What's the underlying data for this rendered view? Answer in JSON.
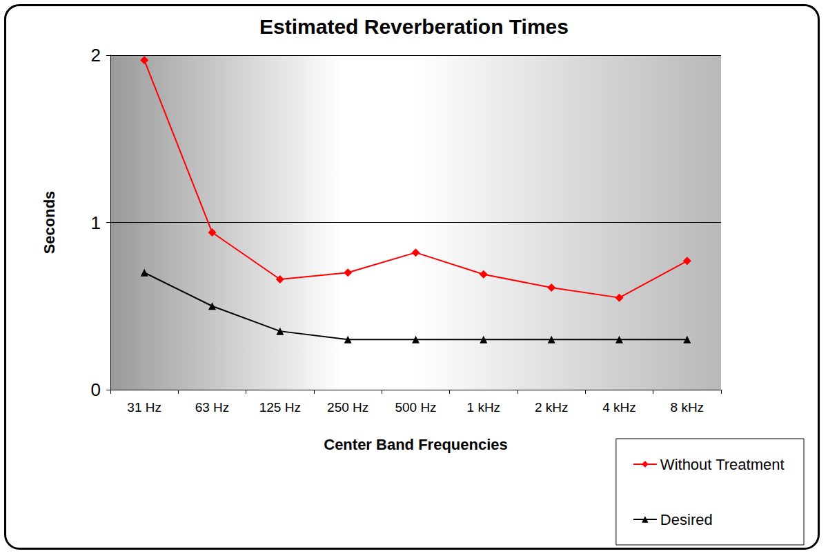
{
  "chart_data": {
    "type": "line",
    "title": "Estimated Reverberation Times",
    "xlabel": "Center Band Frequencies",
    "ylabel": "Seconds",
    "categories": [
      "31 Hz",
      "63 Hz",
      "125 Hz",
      "250 Hz",
      "500 Hz",
      "1 kHz",
      "2 kHz",
      "4 kHz",
      "8 kHz"
    ],
    "series": [
      {
        "name": "Without Treatment",
        "color": "#ff0000",
        "marker": "diamond",
        "line_style": "solid",
        "values": [
          1.97,
          0.94,
          0.66,
          0.7,
          0.82,
          0.69,
          0.61,
          0.55,
          0.77
        ]
      },
      {
        "name": "Desired",
        "color": "#000000",
        "marker": "triangle",
        "line_style": "solid",
        "values": [
          0.7,
          0.5,
          0.35,
          0.3,
          0.3,
          0.3,
          0.3,
          0.3,
          0.3
        ]
      }
    ],
    "ylim": [
      0,
      2
    ],
    "yticks": [
      0,
      1,
      2
    ],
    "grid": true,
    "legend": "lower right"
  }
}
